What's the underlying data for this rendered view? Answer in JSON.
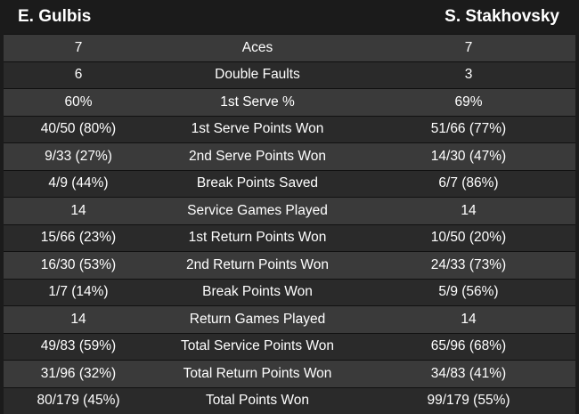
{
  "players": {
    "left": "E. Gulbis",
    "right": "S. Stakhovsky"
  },
  "rows": [
    {
      "left": "7",
      "label": "Aces",
      "right": "7"
    },
    {
      "left": "6",
      "label": "Double Faults",
      "right": "3"
    },
    {
      "left": "60%",
      "label": "1st Serve %",
      "right": "69%"
    },
    {
      "left": "40/50 (80%)",
      "label": "1st Serve Points Won",
      "right": "51/66 (77%)"
    },
    {
      "left": "9/33 (27%)",
      "label": "2nd Serve Points Won",
      "right": "14/30 (47%)"
    },
    {
      "left": "4/9 (44%)",
      "label": "Break Points Saved",
      "right": "6/7 (86%)"
    },
    {
      "left": "14",
      "label": "Service Games Played",
      "right": "14"
    },
    {
      "left": "15/66 (23%)",
      "label": "1st Return Points Won",
      "right": "10/50 (20%)"
    },
    {
      "left": "16/30 (53%)",
      "label": "2nd Return Points Won",
      "right": "24/33 (73%)"
    },
    {
      "left": "1/7 (14%)",
      "label": "Break Points Won",
      "right": "5/9 (56%)"
    },
    {
      "left": "14",
      "label": "Return Games Played",
      "right": "14"
    },
    {
      "left": "49/83 (59%)",
      "label": "Total Service Points Won",
      "right": "65/96 (68%)"
    },
    {
      "left": "31/96 (32%)",
      "label": "Total Return Points Won",
      "right": "34/83 (41%)"
    },
    {
      "left": "80/179 (45%)",
      "label": "Total Points Won",
      "right": "99/179 (55%)"
    }
  ]
}
